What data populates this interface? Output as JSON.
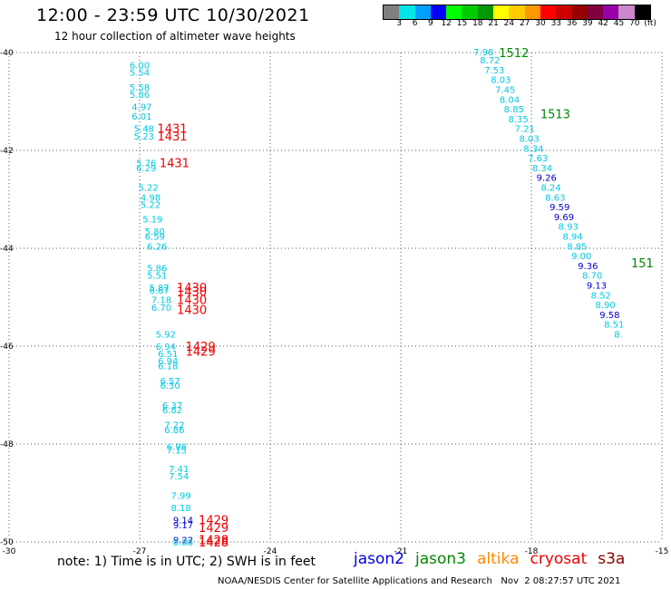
{
  "header": {
    "title": "12:00 - 23:59 UTC 10/30/2021",
    "subtitle": "12 hour collection of altimeter wave heights"
  },
  "colorbar": {
    "colors": [
      "#808080",
      "#00e5e5",
      "#00a0ff",
      "#0000ff",
      "#00ff00",
      "#00cc00",
      "#009900",
      "#ffff00",
      "#ffcc00",
      "#ff9900",
      "#ff0000",
      "#cc0000",
      "#990000",
      "#800040",
      "#9900aa",
      "#cc88cc",
      "#000000"
    ],
    "labels": [
      "3",
      "6",
      "9",
      "12",
      "15",
      "18",
      "21",
      "24",
      "27",
      "30",
      "33",
      "36",
      "39",
      "42",
      "45",
      "70",
      "(ft)"
    ]
  },
  "note": "note: 1) Time is in UTC; 2) SWH is in feet",
  "satellites": [
    {
      "name": "jason2",
      "color": "#0000dd"
    },
    {
      "name": "jason3",
      "color": "#008800"
    },
    {
      "name": "altika",
      "color": "#ff8800"
    },
    {
      "name": "cryosat",
      "color": "#ee0000"
    },
    {
      "name": "s3a",
      "color": "#880000"
    }
  ],
  "footer": "NOAA/NESDIS Center for Satellite Applications and Research   Nov  2 08:27:57 UTC 2021",
  "chart_data": {
    "type": "scatter",
    "xlim": [
      -30,
      -15
    ],
    "ylim": [
      -50,
      -40
    ],
    "x_ticks": [
      -30,
      -27,
      -24,
      -21,
      -18,
      -15
    ],
    "x_tick_labels": [
      "-30",
      "-27",
      "-24",
      "-21",
      "-18",
      "-15"
    ],
    "y_ticks": [
      -40,
      -42,
      -44,
      -46,
      -48,
      -50
    ],
    "y_tick_labels": [
      "-40",
      "-42",
      "-44",
      "-46",
      "-48",
      "-50"
    ],
    "grid": true,
    "swh_points": [
      {
        "lon": -27.0,
        "lat": -40.25,
        "value": "6.00",
        "color": "#00c8e0"
      },
      {
        "lon": -27.0,
        "lat": -40.4,
        "value": "5.54",
        "color": "#00c8e0"
      },
      {
        "lon": -27.0,
        "lat": -40.7,
        "value": "5.58",
        "color": "#00c8e0"
      },
      {
        "lon": -27.0,
        "lat": -40.85,
        "value": "5.86",
        "color": "#00c8e0"
      },
      {
        "lon": -26.95,
        "lat": -41.1,
        "value": "4.97",
        "color": "#00c8e0"
      },
      {
        "lon": -26.95,
        "lat": -41.3,
        "value": "6.01",
        "color": "#00c8e0"
      },
      {
        "lon": -26.9,
        "lat": -41.55,
        "value": "5.48",
        "color": "#00c8e0"
      },
      {
        "lon": -26.9,
        "lat": -41.7,
        "value": "5.23",
        "color": "#00c8e0"
      },
      {
        "lon": -26.85,
        "lat": -42.25,
        "value": "5.76",
        "color": "#00c8e0"
      },
      {
        "lon": -26.85,
        "lat": -42.35,
        "value": "6.29",
        "color": "#00c8e0"
      },
      {
        "lon": -26.8,
        "lat": -42.75,
        "value": "5.22",
        "color": "#00c8e0"
      },
      {
        "lon": -26.75,
        "lat": -42.95,
        "value": "4.98",
        "color": "#00c8e0"
      },
      {
        "lon": -26.75,
        "lat": -43.1,
        "value": "5.22",
        "color": "#00c8e0"
      },
      {
        "lon": -26.7,
        "lat": -43.4,
        "value": "5.19",
        "color": "#00c8e0"
      },
      {
        "lon": -26.65,
        "lat": -43.65,
        "value": "5.80",
        "color": "#00c8e0"
      },
      {
        "lon": -26.65,
        "lat": -43.75,
        "value": "6.59",
        "color": "#00c8e0"
      },
      {
        "lon": -26.6,
        "lat": -43.95,
        "value": "6.26",
        "color": "#00c8e0"
      },
      {
        "lon": -26.6,
        "lat": -44.4,
        "value": "5.86",
        "color": "#00c8e0"
      },
      {
        "lon": -26.6,
        "lat": -44.55,
        "value": "5.51",
        "color": "#00c8e0"
      },
      {
        "lon": -26.55,
        "lat": -44.8,
        "value": "5.87",
        "color": "#00c8e0"
      },
      {
        "lon": -26.55,
        "lat": -44.85,
        "value": "6.67",
        "color": "#00c8e0"
      },
      {
        "lon": -26.5,
        "lat": -45.05,
        "value": "7.18",
        "color": "#00c8e0"
      },
      {
        "lon": -26.5,
        "lat": -45.2,
        "value": "6.70",
        "color": "#00c8e0"
      },
      {
        "lon": -26.4,
        "lat": -45.75,
        "value": "5.92",
        "color": "#00c8e0"
      },
      {
        "lon": -26.4,
        "lat": -46.0,
        "value": "6.94",
        "color": "#00c8e0"
      },
      {
        "lon": -26.35,
        "lat": -46.15,
        "value": "6.51",
        "color": "#00c8e0"
      },
      {
        "lon": -26.35,
        "lat": -46.3,
        "value": "6.94",
        "color": "#00c8e0"
      },
      {
        "lon": -26.35,
        "lat": -46.4,
        "value": "6.18",
        "color": "#00c8e0"
      },
      {
        "lon": -26.3,
        "lat": -46.7,
        "value": "6.57",
        "color": "#00c8e0"
      },
      {
        "lon": -26.3,
        "lat": -46.8,
        "value": "6.30",
        "color": "#00c8e0"
      },
      {
        "lon": -26.25,
        "lat": -47.2,
        "value": "6.37",
        "color": "#00c8e0"
      },
      {
        "lon": -26.25,
        "lat": -47.3,
        "value": "6.82",
        "color": "#00c8e0"
      },
      {
        "lon": -26.2,
        "lat": -47.6,
        "value": "7.22",
        "color": "#00c8e0"
      },
      {
        "lon": -26.2,
        "lat": -47.7,
        "value": "6.86",
        "color": "#00c8e0"
      },
      {
        "lon": -26.15,
        "lat": -48.05,
        "value": "6.98",
        "color": "#00c8e0"
      },
      {
        "lon": -26.15,
        "lat": -48.12,
        "value": "7.15",
        "color": "#00c8e0"
      },
      {
        "lon": -26.1,
        "lat": -48.5,
        "value": "7.41",
        "color": "#00c8e0"
      },
      {
        "lon": -26.1,
        "lat": -48.65,
        "value": "7.54",
        "color": "#00c8e0"
      },
      {
        "lon": -26.05,
        "lat": -49.05,
        "value": "7.99",
        "color": "#00c8e0"
      },
      {
        "lon": -26.05,
        "lat": -49.3,
        "value": "8.18",
        "color": "#00c8e0"
      },
      {
        "lon": -26.0,
        "lat": -49.55,
        "value": "9.14",
        "color": "#0000cc"
      },
      {
        "lon": -26.0,
        "lat": -49.65,
        "value": "9.17",
        "color": "#0000cc"
      },
      {
        "lon": -26.0,
        "lat": -49.95,
        "value": "9.22",
        "color": "#0000cc"
      },
      {
        "lon": -26.0,
        "lat": -50.0,
        "value": "8.88",
        "color": "#00c8e0"
      },
      {
        "lon": -19.1,
        "lat": -39.98,
        "value": "7.98",
        "color": "#00c8e0"
      },
      {
        "lon": -18.95,
        "lat": -40.15,
        "value": "8.72",
        "color": "#00c8e0"
      },
      {
        "lon": -18.85,
        "lat": -40.35,
        "value": "7.53",
        "color": "#00c8e0"
      },
      {
        "lon": -18.7,
        "lat": -40.55,
        "value": "8.03",
        "color": "#00c8e0"
      },
      {
        "lon": -18.6,
        "lat": -40.75,
        "value": "7.45",
        "color": "#00c8e0"
      },
      {
        "lon": -18.5,
        "lat": -40.95,
        "value": "8.04",
        "color": "#00c8e0"
      },
      {
        "lon": -18.4,
        "lat": -41.15,
        "value": "8.85",
        "color": "#00c8e0"
      },
      {
        "lon": -18.3,
        "lat": -41.35,
        "value": "8.35",
        "color": "#00c8e0"
      },
      {
        "lon": -18.15,
        "lat": -41.55,
        "value": "7.21",
        "color": "#00c8e0"
      },
      {
        "lon": -18.05,
        "lat": -41.75,
        "value": "8.03",
        "color": "#00c8e0"
      },
      {
        "lon": -17.95,
        "lat": -41.95,
        "value": "8.34",
        "color": "#00c8e0"
      },
      {
        "lon": -17.85,
        "lat": -42.15,
        "value": "7.63",
        "color": "#00c8e0"
      },
      {
        "lon": -17.75,
        "lat": -42.35,
        "value": "8.34",
        "color": "#00c8e0"
      },
      {
        "lon": -17.65,
        "lat": -42.55,
        "value": "9.26",
        "color": "#0000cc"
      },
      {
        "lon": -17.55,
        "lat": -42.75,
        "value": "8.24",
        "color": "#00c8e0"
      },
      {
        "lon": -17.45,
        "lat": -42.95,
        "value": "8.63",
        "color": "#00c8e0"
      },
      {
        "lon": -17.35,
        "lat": -43.15,
        "value": "9.59",
        "color": "#0000cc"
      },
      {
        "lon": -17.25,
        "lat": -43.35,
        "value": "9.69",
        "color": "#0000cc"
      },
      {
        "lon": -17.15,
        "lat": -43.55,
        "value": "8.93",
        "color": "#00c8e0"
      },
      {
        "lon": -17.05,
        "lat": -43.75,
        "value": "8.94",
        "color": "#00c8e0"
      },
      {
        "lon": -16.95,
        "lat": -43.95,
        "value": "8.85",
        "color": "#00c8e0"
      },
      {
        "lon": -16.85,
        "lat": -44.15,
        "value": "9.00",
        "color": "#00c8e0"
      },
      {
        "lon": -16.7,
        "lat": -44.35,
        "value": "9.36",
        "color": "#0000cc"
      },
      {
        "lon": -16.6,
        "lat": -44.55,
        "value": "8.70",
        "color": "#00c8e0"
      },
      {
        "lon": -16.5,
        "lat": -44.75,
        "value": "9.13",
        "color": "#0000cc"
      },
      {
        "lon": -16.4,
        "lat": -44.95,
        "value": "8.52",
        "color": "#00c8e0"
      },
      {
        "lon": -16.3,
        "lat": -45.15,
        "value": "8.90",
        "color": "#00c8e0"
      },
      {
        "lon": -16.2,
        "lat": -45.35,
        "value": "9.58",
        "color": "#0000cc"
      },
      {
        "lon": -16.1,
        "lat": -45.55,
        "value": "8.51",
        "color": "#00c8e0"
      },
      {
        "lon": -16.0,
        "lat": -45.75,
        "value": "8.",
        "color": "#00c8e0"
      }
    ],
    "time_labels": [
      {
        "lon": -26.25,
        "lat": -41.55,
        "text": "1431",
        "color": "#ee0000"
      },
      {
        "lon": -26.25,
        "lat": -41.7,
        "text": "1431",
        "color": "#ee0000"
      },
      {
        "lon": -26.2,
        "lat": -42.25,
        "text": "1431",
        "color": "#ee0000"
      },
      {
        "lon": -25.8,
        "lat": -44.8,
        "text": "1430",
        "color": "#ee0000"
      },
      {
        "lon": -25.8,
        "lat": -44.88,
        "text": "1430",
        "color": "#ee0000"
      },
      {
        "lon": -25.8,
        "lat": -45.05,
        "text": "1430",
        "color": "#ee0000"
      },
      {
        "lon": -25.8,
        "lat": -45.25,
        "text": "1430",
        "color": "#ee0000"
      },
      {
        "lon": -25.6,
        "lat": -46.0,
        "text": "1429",
        "color": "#ee0000"
      },
      {
        "lon": -25.6,
        "lat": -46.1,
        "text": "1429",
        "color": "#ee0000"
      },
      {
        "lon": -25.3,
        "lat": -49.55,
        "text": "1429",
        "color": "#ee0000"
      },
      {
        "lon": -25.3,
        "lat": -49.7,
        "text": "1429",
        "color": "#ee0000"
      },
      {
        "lon": -25.3,
        "lat": -49.95,
        "text": "1428",
        "color": "#ee0000"
      },
      {
        "lon": -25.3,
        "lat": -50.0,
        "text": "1428",
        "color": "#ee0000"
      },
      {
        "lon": -18.4,
        "lat": -40.0,
        "text": "1512",
        "color": "#008800"
      },
      {
        "lon": -17.45,
        "lat": -41.25,
        "text": "1513",
        "color": "#008800"
      },
      {
        "lon": -15.45,
        "lat": -44.3,
        "text": "151",
        "color": "#008800"
      }
    ]
  }
}
